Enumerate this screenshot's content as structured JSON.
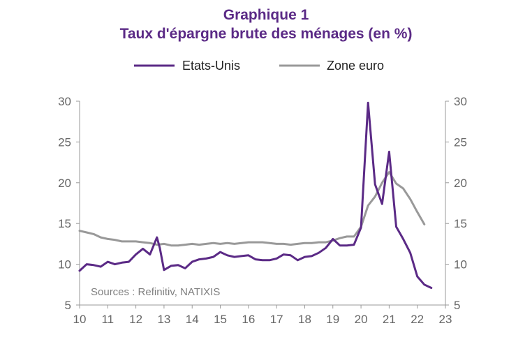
{
  "title": "Graphique 1",
  "subtitle": "Taux d'épargne brute des ménages (en %)",
  "source": "Sources : Refinitiv, NATIXIS",
  "chart_data": {
    "type": "line",
    "y_ticks": [
      "5",
      "10",
      "15",
      "20",
      "25",
      "30"
    ],
    "y2_ticks": [
      "5",
      "10",
      "15",
      "20",
      "25",
      "30"
    ],
    "x_ticks": [
      "10",
      "11",
      "12",
      "13",
      "14",
      "15",
      "16",
      "17",
      "18",
      "19",
      "20",
      "21",
      "22",
      "23"
    ],
    "ylim": [
      5,
      30
    ],
    "xlim": [
      10,
      23
    ],
    "grid": false,
    "legend_position": "top",
    "series": [
      {
        "name": "Etats-Unis",
        "color": "#5b2a86",
        "axis": "left",
        "x": [
          10.0,
          10.25,
          10.5,
          10.75,
          11.0,
          11.25,
          11.5,
          11.75,
          12.0,
          12.25,
          12.5,
          12.75,
          12.85,
          13.0,
          13.25,
          13.5,
          13.75,
          14.0,
          14.25,
          14.5,
          14.75,
          15.0,
          15.25,
          15.5,
          15.75,
          16.0,
          16.25,
          16.5,
          16.75,
          17.0,
          17.25,
          17.5,
          17.75,
          18.0,
          18.25,
          18.5,
          18.75,
          19.0,
          19.25,
          19.5,
          19.75,
          20.0,
          20.25,
          20.5,
          20.75,
          21.0,
          21.25,
          21.5,
          21.75,
          22.0,
          22.25,
          22.5
        ],
        "values": [
          9.2,
          10.0,
          9.9,
          9.7,
          10.3,
          10.0,
          10.2,
          10.3,
          11.2,
          11.9,
          11.2,
          13.3,
          12.0,
          9.3,
          9.8,
          9.9,
          9.5,
          10.3,
          10.6,
          10.7,
          10.9,
          11.5,
          11.1,
          10.9,
          11.0,
          11.1,
          10.6,
          10.5,
          10.5,
          10.7,
          11.2,
          11.1,
          10.5,
          10.9,
          11.0,
          11.4,
          12.0,
          13.1,
          12.3,
          12.3,
          12.4,
          14.5,
          29.8,
          19.8,
          17.4,
          23.8,
          14.6,
          13.1,
          11.4,
          8.5,
          7.5,
          7.1
        ]
      },
      {
        "name": "Zone euro",
        "color": "#999999",
        "axis": "right",
        "x": [
          10.0,
          10.25,
          10.5,
          10.75,
          11.0,
          11.25,
          11.5,
          11.75,
          12.0,
          12.25,
          12.5,
          12.75,
          13.0,
          13.25,
          13.5,
          13.75,
          14.0,
          14.25,
          14.5,
          14.75,
          15.0,
          15.25,
          15.5,
          15.75,
          16.0,
          16.25,
          16.5,
          16.75,
          17.0,
          17.25,
          17.5,
          17.75,
          18.0,
          18.25,
          18.5,
          18.75,
          19.0,
          19.25,
          19.5,
          19.75,
          20.0,
          20.25,
          20.5,
          20.75,
          21.0,
          21.25,
          21.5,
          21.75,
          22.0,
          22.25
        ],
        "values": [
          14.1,
          13.9,
          13.7,
          13.3,
          13.1,
          13.0,
          12.8,
          12.8,
          12.8,
          12.7,
          12.6,
          12.4,
          12.5,
          12.3,
          12.3,
          12.4,
          12.5,
          12.4,
          12.5,
          12.6,
          12.5,
          12.6,
          12.5,
          12.6,
          12.7,
          12.7,
          12.7,
          12.6,
          12.5,
          12.5,
          12.4,
          12.5,
          12.6,
          12.6,
          12.7,
          12.7,
          12.9,
          13.2,
          13.4,
          13.4,
          14.6,
          17.2,
          18.3,
          20.0,
          21.3,
          19.9,
          19.3,
          18.0,
          16.4,
          14.9
        ]
      }
    ]
  }
}
